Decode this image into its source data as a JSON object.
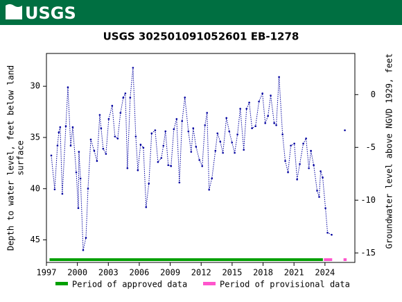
{
  "header": {
    "logo": "USGS"
  },
  "chart_data": {
    "type": "line",
    "title": "USGS 302501091052601 EB-1278",
    "ylabel": [
      "Depth to water level, feet below land",
      "surface"
    ],
    "y2label": "Groundwater level above NGVD 1929, feet",
    "xlim": [
      1997,
      2026.9
    ],
    "xticks": [
      1997,
      2000,
      2003,
      2006,
      2009,
      2012,
      2015,
      2018,
      2021,
      2024
    ],
    "ylim": [
      26.8,
      47.2
    ],
    "y_inverted": true,
    "yticks": [
      30,
      35,
      40,
      45
    ],
    "y2lim": [
      -15.9,
      3.9
    ],
    "y2ticks": [
      0,
      -5,
      -10,
      -15
    ],
    "series": [
      {
        "color": "#00009f",
        "x": [
          1997.47,
          1997.8,
          1998.07,
          1998.2,
          1998.33,
          1998.54,
          1998.88,
          1999.08,
          1999.35,
          1999.55,
          1999.89,
          2000.09,
          2000.15,
          2000.3,
          2000.56,
          2000.83,
          2001.03,
          2001.3,
          2001.63,
          2001.9,
          2002.17,
          2002.3,
          2002.5,
          2002.77,
          2003.04,
          2003.37,
          2003.64,
          2003.91,
          2004.18,
          2004.45,
          2004.65,
          2004.85,
          2005.12,
          2005.39,
          2005.66,
          2005.86,
          2006.13,
          2006.4,
          2006.66,
          2006.93,
          2007.2,
          2007.54,
          2007.81,
          2008.14,
          2008.34,
          2008.54,
          2008.81,
          2009.08,
          2009.35,
          2009.62,
          2009.89,
          2010.15,
          2010.42,
          2010.76,
          2011.03,
          2011.23,
          2011.5,
          2011.83,
          2012.1,
          2012.37,
          2012.57,
          2012.77,
          2013.04,
          2013.38,
          2013.58,
          2013.85,
          2014.11,
          2014.45,
          2014.72,
          2014.99,
          2015.25,
          2015.52,
          2015.79,
          2016.13,
          2016.4,
          2016.66,
          2016.93,
          2017.27,
          2017.6,
          2017.94,
          2018.21,
          2018.48,
          2018.74,
          2019.08,
          2019.28,
          2019.55,
          2019.89,
          2020.15,
          2020.42,
          2020.69,
          2021.03,
          2021.3,
          2021.56,
          2021.9,
          2022.17,
          2022.44,
          2022.64,
          2022.91,
          2023.24,
          2023.44,
          2023.58,
          2023.78,
          2024.05,
          2024.25,
          2024.65,
          2025.3,
          2025.93
        ],
        "values": [
          36.76,
          40.07,
          35.8,
          34.5,
          34.0,
          40.5,
          33.9,
          30.1,
          35.8,
          34.0,
          38.4,
          41.9,
          36.4,
          39.0,
          46.0,
          44.8,
          40.0,
          35.2,
          36.3,
          37.3,
          32.8,
          34.1,
          36.1,
          36.6,
          33.2,
          31.9,
          34.9,
          35.1,
          32.6,
          31.1,
          30.7,
          38.0,
          31.1,
          28.2,
          34.9,
          38.2,
          35.7,
          36.0,
          41.8,
          39.5,
          34.6,
          34.3,
          37.4,
          37.0,
          35.8,
          34.4,
          37.7,
          37.8,
          34.2,
          33.2,
          39.4,
          33.4,
          31.1,
          34.4,
          36.4,
          34.1,
          35.9,
          37.2,
          37.8,
          33.8,
          32.6,
          40.1,
          39.0,
          36.3,
          34.6,
          35.4,
          36.5,
          33.1,
          34.4,
          35.5,
          36.5,
          34.7,
          32.2,
          36.2,
          32.2,
          31.6,
          34.1,
          33.9,
          31.5,
          30.7,
          33.6,
          32.9,
          30.9,
          33.6,
          33.8,
          29.1,
          34.7,
          37.3,
          38.4,
          35.8,
          35.6,
          39.1,
          37.6,
          35.6,
          35.1,
          38.0,
          36.3,
          37.7,
          40.2,
          40.8,
          38.3,
          38.9,
          41.9,
          44.3,
          44.5,
          null,
          34.3
        ]
      }
    ],
    "periods": [
      {
        "name": "Period of approved data",
        "color": "#00a000",
        "ranges": [
          [
            1997.3,
            2023.8
          ]
        ]
      },
      {
        "name": "Period of provisional data",
        "color": "#ff55cc",
        "ranges": [
          [
            2023.9,
            2024.7
          ],
          [
            2025.8,
            2026.1
          ]
        ]
      }
    ]
  }
}
